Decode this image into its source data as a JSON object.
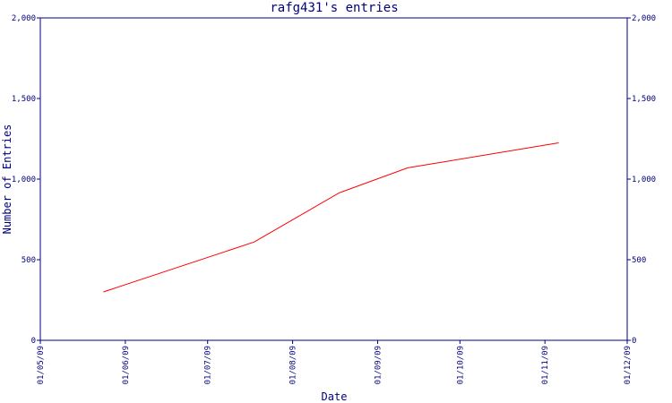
{
  "chart_data": {
    "type": "line",
    "title": "rafg431's entries",
    "xlabel": "Date",
    "ylabel": "Number of Entries",
    "ylim": [
      0,
      2000
    ],
    "y_ticks": [
      {
        "value": 0,
        "label": "0"
      },
      {
        "value": 500,
        "label": "500"
      },
      {
        "value": 1000,
        "label": "1,000"
      },
      {
        "value": 1500,
        "label": "1,500"
      },
      {
        "value": 2000,
        "label": "2,000"
      }
    ],
    "x_ticks": [
      "01/05/09",
      "01/06/09",
      "01/07/09",
      "01/08/09",
      "01/09/09",
      "01/10/09",
      "01/11/09",
      "01/12/09"
    ],
    "xlim": [
      "01/05/09",
      "01/12/09"
    ],
    "grid": false,
    "legend": "none",
    "series": [
      {
        "color": "#ff0000",
        "x": [
          "01/05/09 + 23d",
          "01/07/09 + 17d",
          "01/08/09 + 17d",
          "01/09/09 + 12d",
          "01/11/09 + 6d"
        ],
        "dates": [
          "2009-05-24",
          "2009-07-18",
          "2009-08-18",
          "2009-09-12",
          "2009-11-06"
        ],
        "values": [
          300,
          610,
          915,
          1070,
          1225
        ]
      }
    ]
  }
}
